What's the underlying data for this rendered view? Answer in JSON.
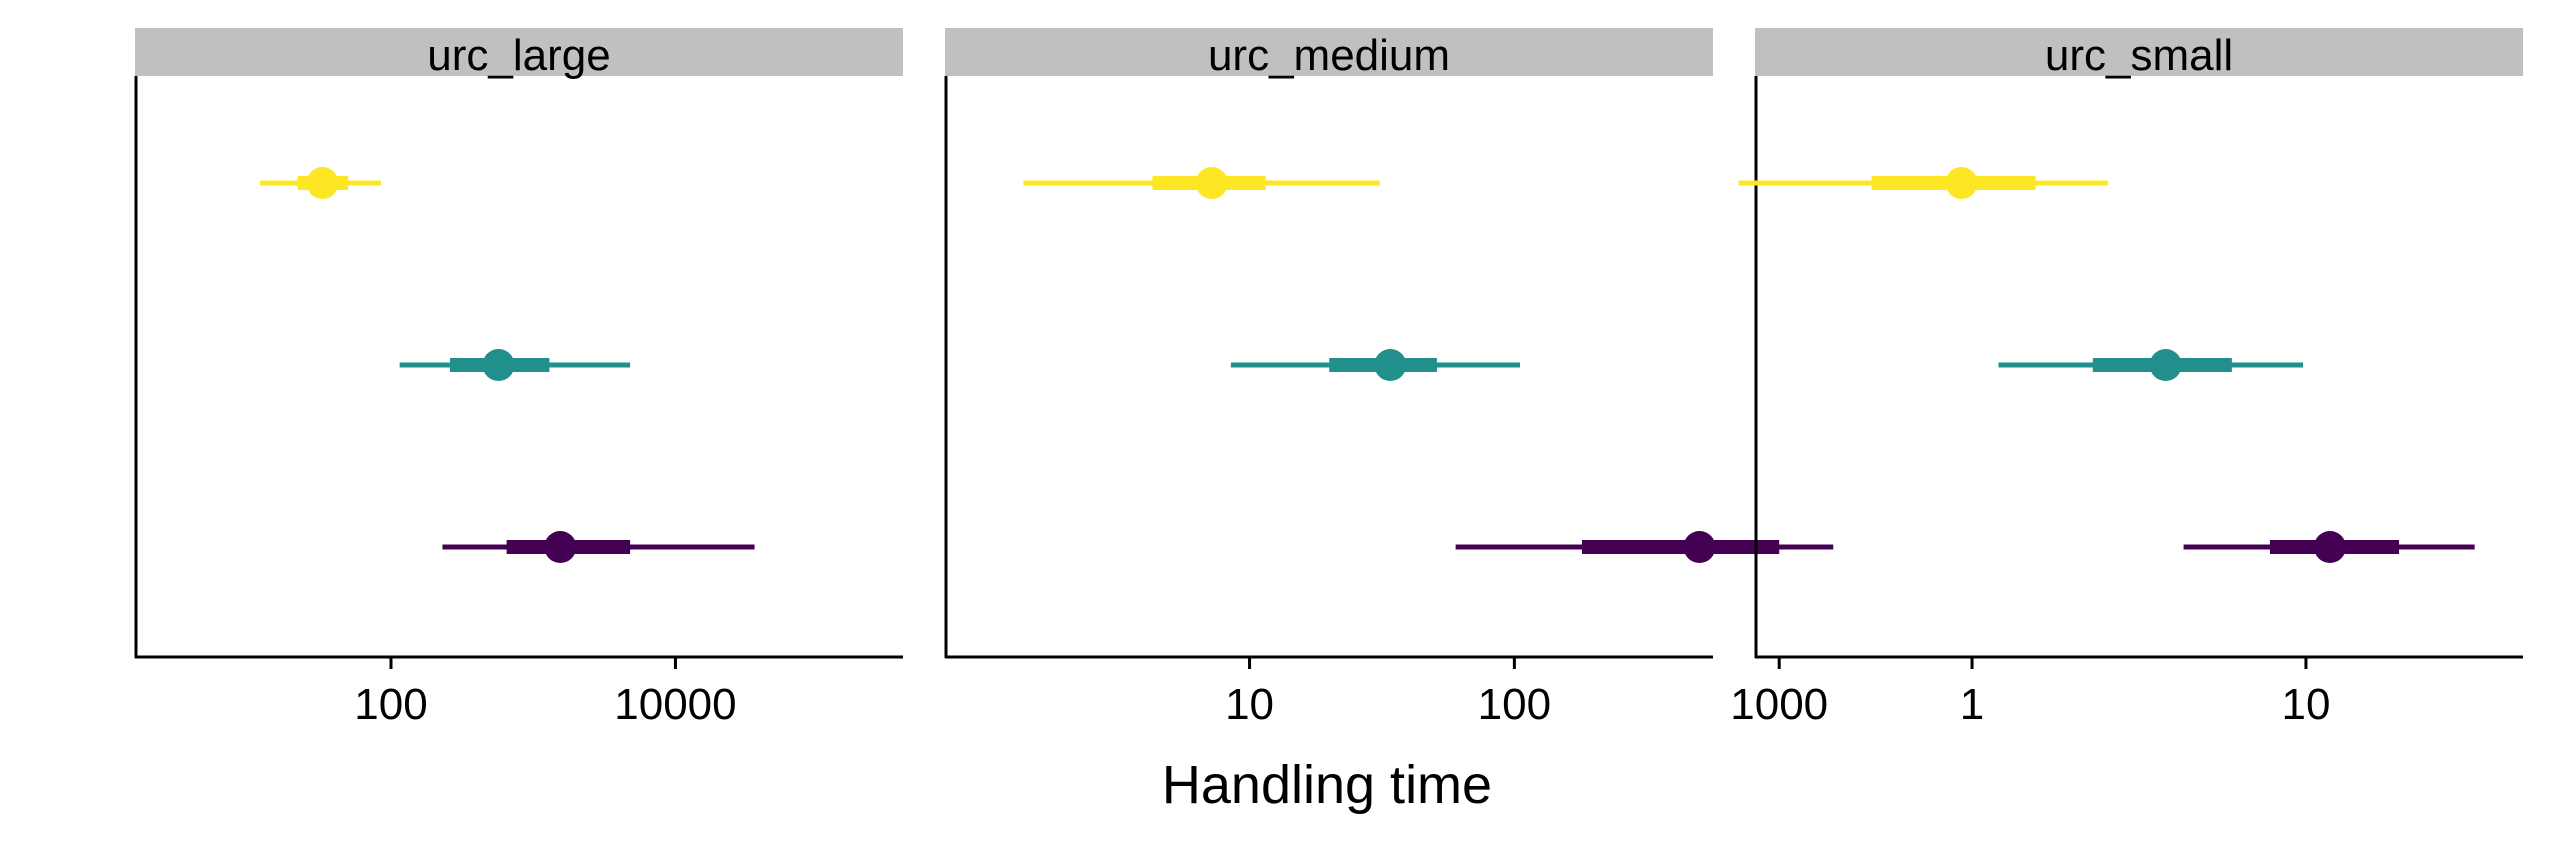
{
  "chart_data": {
    "type": "pointrange",
    "xlabel": "Handling time",
    "ylabel": "",
    "x_scale": "log10",
    "grid": false,
    "legend": "none",
    "series_colors": [
      "#FDE725",
      "#21908C",
      "#440154"
    ],
    "panels": [
      {
        "title": "urc_large",
        "xlim_log10": [
          0.2,
          5.6
        ],
        "ticks": [
          {
            "value": 100,
            "label": "100"
          },
          {
            "value": 10000,
            "label": "10000"
          }
        ],
        "estimates": [
          {
            "color": "#FDE725",
            "median": 33,
            "inner": [
              22,
              50
            ],
            "outer": [
              12,
              85
            ]
          },
          {
            "color": "#21908C",
            "median": 570,
            "inner": [
              260,
              1300
            ],
            "outer": [
              115,
              4800
            ]
          },
          {
            "color": "#440154",
            "median": 1550,
            "inner": [
              650,
              4800
            ],
            "outer": [
              230,
              36000
            ]
          }
        ]
      },
      {
        "title": "urc_medium",
        "xlim_log10": [
          -0.15,
          2.75
        ],
        "ticks": [
          {
            "value": 10,
            "label": "10"
          },
          {
            "value": 100,
            "label": "100"
          },
          {
            "value": 1000,
            "label": "1000"
          }
        ],
        "estimates": [
          {
            "color": "#FDE725",
            "median": 7.2,
            "inner": [
              4.3,
              11.5
            ],
            "outer": [
              1.4,
              31
            ]
          },
          {
            "color": "#21908C",
            "median": 34,
            "inner": [
              20,
              51
            ],
            "outer": [
              8.5,
              105
            ]
          },
          {
            "color": "#440154",
            "median": 500,
            "inner": [
              180,
              1000
            ],
            "outer": [
              60,
              1600
            ]
          }
        ]
      },
      {
        "title": "urc_small",
        "xlim_log10": [
          -0.65,
          1.65
        ],
        "ticks": [
          {
            "value": 1,
            "label": "1"
          },
          {
            "value": 10,
            "label": "10"
          }
        ],
        "estimates": [
          {
            "color": "#FDE725",
            "median": 0.93,
            "inner": [
              0.5,
              1.55
            ],
            "outer": [
              0.2,
              2.55
            ]
          },
          {
            "color": "#21908C",
            "median": 3.8,
            "inner": [
              2.3,
              6.0
            ],
            "outer": [
              1.2,
              9.8
            ]
          },
          {
            "color": "#440154",
            "median": 11.8,
            "inner": [
              7.8,
              19
            ],
            "outer": [
              4.3,
              32
            ]
          }
        ]
      }
    ]
  }
}
